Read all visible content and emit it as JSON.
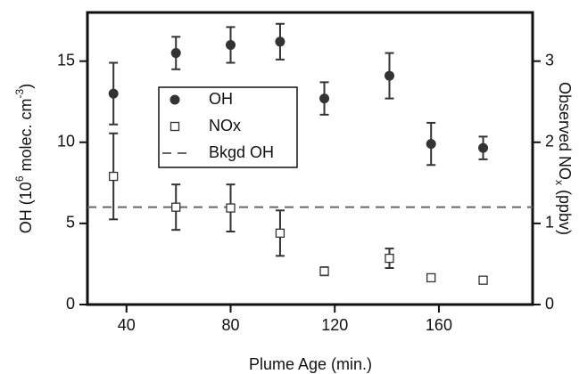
{
  "chart_data": {
    "type": "scatter",
    "xlabel": "Plume Age  (min.)",
    "ylabel": [
      "OH  (10",
      "6",
      " molec. cm",
      "-3",
      ")"
    ],
    "y2label": [
      "Observed NO",
      "x",
      "  (ppbv)"
    ],
    "xlim": [
      25,
      196
    ],
    "xticks": [
      40,
      80,
      120,
      160
    ],
    "ylim": [
      0,
      18
    ],
    "yticks": [
      0,
      5,
      10,
      15
    ],
    "y2lim": [
      0,
      3.6
    ],
    "y2ticks": [
      0,
      1,
      2,
      3
    ],
    "series": [
      {
        "name": "OH",
        "color": "#333333",
        "marker": "circle",
        "x": [
          35,
          59,
          80,
          99,
          116,
          141,
          157,
          177
        ],
        "values": [
          13.0,
          15.5,
          16.0,
          16.2,
          12.7,
          14.1,
          9.9,
          9.65
        ],
        "errors": [
          1.9,
          1.0,
          1.1,
          1.1,
          1.0,
          1.4,
          1.3,
          0.7
        ]
      },
      {
        "name": "NOx",
        "color": "#333333",
        "marker": "square",
        "axis": "y2",
        "x": [
          35,
          59,
          80,
          99,
          116,
          141,
          157,
          177
        ],
        "values": [
          1.58,
          1.2,
          1.19,
          0.88,
          0.41,
          0.57,
          0.33,
          0.3
        ],
        "errors": [
          0.53,
          0.28,
          0.29,
          0.28,
          0.05,
          0.12,
          0.04,
          0.03
        ]
      }
    ],
    "reference_lines": [
      {
        "name": "Bkgd OH",
        "value": 6.0,
        "color": "#666666",
        "dash": true
      }
    ]
  }
}
